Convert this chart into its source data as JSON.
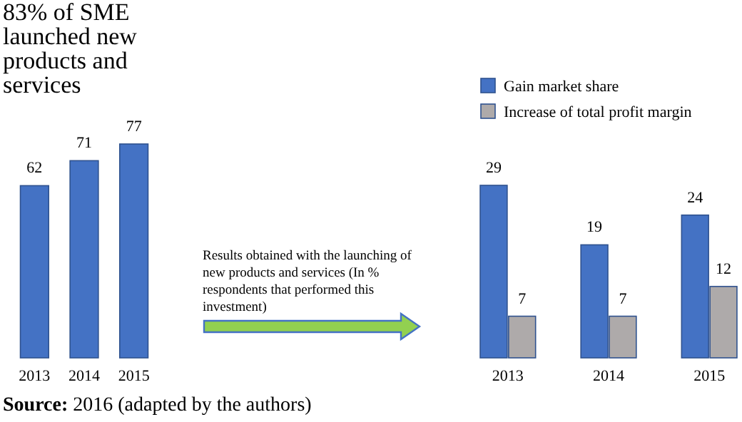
{
  "chart_data": [
    {
      "type": "bar",
      "title": "83% of SME launched new products and services",
      "categories": [
        "2013",
        "2014",
        "2015"
      ],
      "values": [
        62,
        71,
        77
      ],
      "color": "#4472c4",
      "data_labels": true,
      "annotations": [
        "Source: 2016 (adapted by the authors)"
      ]
    },
    {
      "type": "bar",
      "categories": [
        "2013",
        "2014",
        "2015"
      ],
      "series": [
        {
          "name": "Gain market share",
          "color": "#4472c4",
          "values": [
            29,
            19,
            24
          ]
        },
        {
          "name": "Increase of total profit margin",
          "color": "#aeaaaa",
          "values": [
            7,
            7,
            12
          ]
        }
      ],
      "data_labels": true,
      "legend": "top",
      "annotations": [
        "Results obtained with the launching of new products and services (In % respondents that performed this investment)"
      ]
    }
  ]
}
